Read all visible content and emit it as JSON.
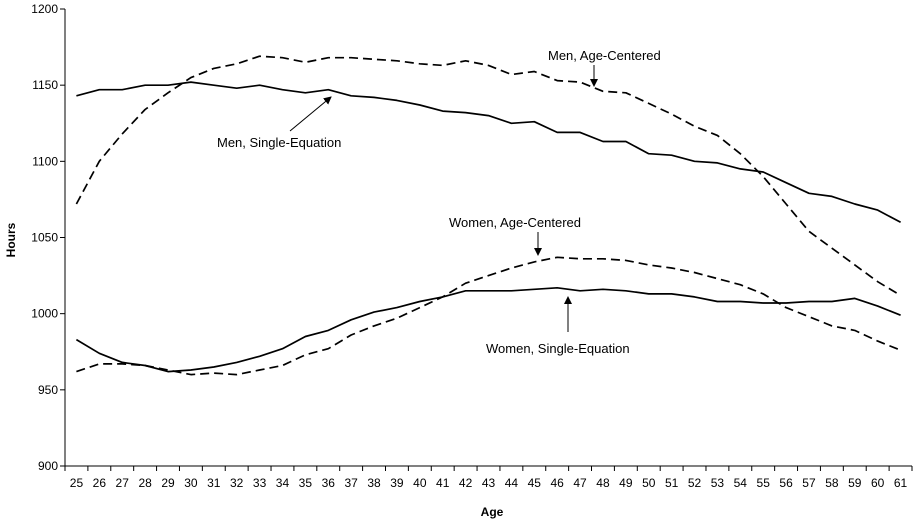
{
  "chart_data": {
    "type": "line",
    "title": "",
    "xlabel": "Age",
    "ylabel": "Hours",
    "ylim": [
      900,
      1200
    ],
    "yticks": [
      900,
      950,
      1000,
      1050,
      1100,
      1150,
      1200
    ],
    "grid": false,
    "legend": "none (series labeled by annotations with arrows)",
    "x": [
      25,
      26,
      27,
      28,
      29,
      30,
      31,
      32,
      33,
      34,
      35,
      36,
      37,
      38,
      39,
      40,
      41,
      42,
      43,
      44,
      45,
      46,
      47,
      48,
      49,
      50,
      51,
      52,
      53,
      54,
      55,
      56,
      57,
      58,
      59,
      60,
      61
    ],
    "series": [
      {
        "name": "Men, Single-Equation",
        "style": "solid",
        "values": [
          1143,
          1147,
          1147,
          1150,
          1150,
          1152,
          1150,
          1148,
          1150,
          1147,
          1145,
          1147,
          1143,
          1142,
          1140,
          1137,
          1133,
          1132,
          1130,
          1125,
          1126,
          1119,
          1119,
          1113,
          1113,
          1105,
          1104,
          1100,
          1099,
          1095,
          1093,
          1086,
          1079,
          1077,
          1072,
          1068,
          1060
        ]
      },
      {
        "name": "Men, Age-Centered",
        "style": "dashed",
        "values": [
          1072,
          1100,
          1118,
          1134,
          1145,
          1155,
          1161,
          1164,
          1169,
          1168,
          1165,
          1168,
          1168,
          1167,
          1166,
          1164,
          1163,
          1166,
          1163,
          1157,
          1159,
          1153,
          1152,
          1146,
          1145,
          1138,
          1131,
          1123,
          1117,
          1105,
          1090,
          1072,
          1054,
          1043,
          1032,
          1021,
          1012
        ]
      },
      {
        "name": "Women, Single-Equation",
        "style": "solid",
        "values": [
          983,
          974,
          968,
          966,
          962,
          963,
          965,
          968,
          972,
          977,
          985,
          989,
          996,
          1001,
          1004,
          1008,
          1011,
          1015,
          1015,
          1015,
          1016,
          1017,
          1015,
          1016,
          1015,
          1013,
          1013,
          1011,
          1008,
          1008,
          1007,
          1007,
          1008,
          1008,
          1010,
          1005,
          999
        ]
      },
      {
        "name": "Women, Age-Centered",
        "style": "dashed",
        "values": [
          962,
          967,
          967,
          966,
          963,
          960,
          961,
          960,
          963,
          966,
          973,
          977,
          986,
          992,
          997,
          1004,
          1011,
          1020,
          1025,
          1030,
          1034,
          1037,
          1036,
          1036,
          1035,
          1032,
          1030,
          1027,
          1023,
          1019,
          1013,
          1004,
          998,
          992,
          989,
          982,
          976
        ]
      }
    ],
    "annotations": [
      {
        "text": "Men, Age-Centered",
        "series": "Men, Age-Centered"
      },
      {
        "text": "Men, Single-Equation",
        "series": "Men, Single-Equation"
      },
      {
        "text": "Women, Age-Centered",
        "series": "Women, Age-Centered"
      },
      {
        "text": "Women, Single-Equation",
        "series": "Women, Single-Equation"
      }
    ]
  }
}
